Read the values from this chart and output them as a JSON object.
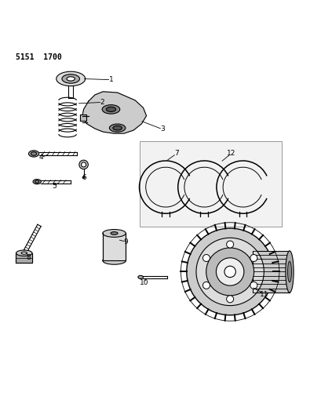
{
  "title": "5151  1700",
  "bg_color": "#ffffff",
  "line_color": "#000000",
  "label_color": "#000000",
  "fig_width": 4.1,
  "fig_height": 5.33,
  "dpi": 100
}
